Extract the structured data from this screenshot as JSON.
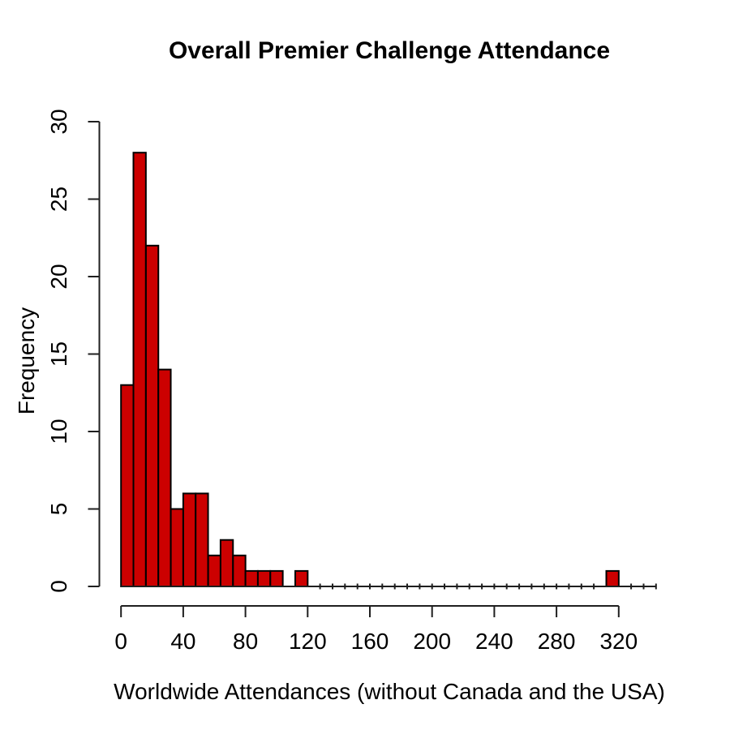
{
  "chart_data": {
    "type": "bar",
    "subtype": "histogram",
    "title": "Overall Premier Challenge Attendance",
    "xlabel": "Worldwide Attendances (without Canada and the USA)",
    "ylabel": "Frequency",
    "bin_start": 0,
    "bin_width": 8,
    "counts": [
      13,
      28,
      22,
      14,
      5,
      6,
      6,
      2,
      3,
      2,
      1,
      1,
      1,
      0,
      1,
      0,
      0,
      0,
      0,
      0,
      0,
      0,
      0,
      0,
      0,
      0,
      0,
      0,
      0,
      0,
      0,
      0,
      0,
      0,
      0,
      0,
      0,
      0,
      0,
      1,
      0,
      0,
      0
    ],
    "x_ticks": [
      0,
      40,
      80,
      120,
      160,
      200,
      240,
      280,
      320
    ],
    "y_ticks": [
      0,
      5,
      10,
      15,
      20,
      25,
      30
    ],
    "xlim": [
      0,
      344
    ],
    "ylim": [
      0,
      30
    ],
    "grid": false,
    "legend": "none",
    "bar_color": "#CC0000",
    "bar_border_color": "#000000",
    "axis_color": "#1f1f1f",
    "text_color": "#000000"
  }
}
